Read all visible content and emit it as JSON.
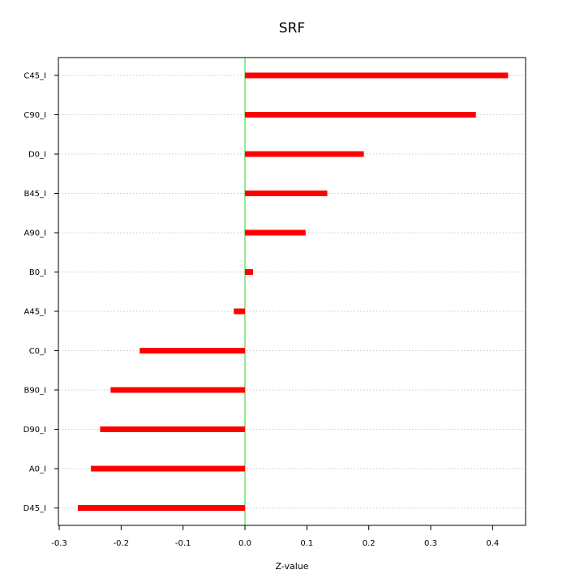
{
  "chart_data": {
    "type": "bar",
    "orientation": "horizontal",
    "title": "SRF",
    "xlabel": "Z-value",
    "ylabel": "",
    "xlim": [
      -0.3,
      0.45
    ],
    "x_ticks": [
      -0.3,
      -0.2,
      -0.1,
      0.0,
      0.1,
      0.2,
      0.3,
      0.4
    ],
    "x_tick_labels": [
      "-0.3",
      "-0.2",
      "-0.1",
      "0.0",
      "0.1",
      "0.2",
      "0.3",
      "0.4"
    ],
    "categories": [
      "C45_I",
      "C90_I",
      "D0_I",
      "B45_I",
      "A90_I",
      "B0_I",
      "A45_I",
      "C0_I",
      "B90_I",
      "D90_I",
      "A0_I",
      "D45_I"
    ],
    "values": [
      0.425,
      0.373,
      0.192,
      0.133,
      0.098,
      0.013,
      -0.018,
      -0.17,
      -0.217,
      -0.234,
      -0.249,
      -0.27
    ],
    "grid": true,
    "zero_line": true,
    "colors": {
      "bar": "#ff0000",
      "zero_line": "#33cc33",
      "grid": "#c8c8c8",
      "axis": "#000000"
    }
  }
}
